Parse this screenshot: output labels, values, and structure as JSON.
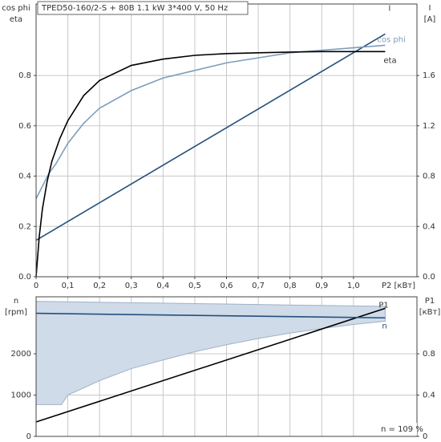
{
  "chart_data": [
    {
      "type": "line",
      "title": "TPED50-160/2-S + 80B  1.1 kW  3*400 V, 50 Hz",
      "ylabel_lines": [
        "cos phi",
        "eta"
      ],
      "y2label_lines": [
        "I",
        "[A]"
      ],
      "xlabel": "P2 [кВт]",
      "xlim": [
        0,
        1.2
      ],
      "xticks": [
        0,
        {
          "value": 0.1,
          "label": "0,1"
        },
        {
          "value": 0.2,
          "label": "0,2"
        },
        {
          "value": 0.3,
          "label": "0,3"
        },
        {
          "value": 0.4,
          "label": "0,4"
        },
        {
          "value": 0.5,
          "label": "0,5"
        },
        {
          "value": 0.6,
          "label": "0,6"
        },
        {
          "value": 0.7,
          "label": "0,7"
        },
        {
          "value": 0.8,
          "label": "0,8"
        },
        {
          "value": 0.9,
          "label": "0,9"
        },
        {
          "value": 1.0,
          "label": "1,0"
        }
      ],
      "ylim": [
        0,
        1.084
      ],
      "yticks": [
        {
          "value": 0,
          "label": "0.0"
        },
        0.2,
        0.4,
        0.6,
        0.8
      ],
      "y2lim": [
        0,
        2.168
      ],
      "y2ticks": [
        {
          "value": 0,
          "label": "0.0"
        },
        0.4,
        0.8,
        1.2,
        1.6
      ],
      "grid": true,
      "series": [
        {
          "name": "I",
          "color": "#24507c",
          "axis": "y2",
          "x": [
            0,
            1.1
          ],
          "values": [
            0.29,
            1.93
          ]
        },
        {
          "name": "cos phi",
          "color": "#7d9dbd",
          "x": [
            0,
            0.02,
            0.04,
            0.063,
            0.1,
            0.15,
            0.2,
            0.3,
            0.4,
            0.5,
            0.6,
            0.7,
            0.8,
            0.9,
            1.0,
            1.1
          ],
          "values": [
            0.31,
            0.36,
            0.41,
            0.45,
            0.53,
            0.61,
            0.67,
            0.74,
            0.79,
            0.82,
            0.85,
            0.87,
            0.89,
            0.9,
            0.91,
            0.92
          ]
        },
        {
          "name": "eta",
          "color": "#000000",
          "x": [
            0,
            0.01,
            0.02,
            0.035,
            0.05,
            0.075,
            0.1,
            0.15,
            0.2,
            0.3,
            0.4,
            0.5,
            0.6,
            0.7,
            0.8,
            0.9,
            1.0,
            1.1
          ],
          "values": [
            0,
            0.16,
            0.27,
            0.38,
            0.46,
            0.55,
            0.62,
            0.72,
            0.78,
            0.84,
            0.865,
            0.88,
            0.887,
            0.89,
            0.893,
            0.895,
            0.895,
            0.895
          ]
        }
      ]
    },
    {
      "type": "line",
      "ylabel_lines": [
        "n",
        "[rpm]"
      ],
      "y2label_lines": [
        "P1",
        "[кВт]"
      ],
      "note": "n = 109 %",
      "xlim": [
        0,
        1.2
      ],
      "ylim": [
        0,
        3380
      ],
      "yticks": [
        0,
        1000,
        2000
      ],
      "y2lim": [
        0,
        1.352
      ],
      "y2ticks": [
        0,
        0.4,
        0.8
      ],
      "grid": true,
      "band": {
        "color": "#cfdbe8",
        "x": [
          0,
          0.08,
          0.1,
          0.2,
          0.3,
          0.4,
          0.5,
          0.6,
          0.7,
          0.8,
          0.9,
          1.0,
          1.1
        ],
        "upper": [
          3270,
          3261,
          3259,
          3248,
          3237,
          3226,
          3215,
          3204,
          3193,
          3182,
          3171,
          3160,
          3150
        ],
        "lower": [
          770,
          770,
          1000,
          1350,
          1640,
          1850,
          2050,
          2220,
          2370,
          2500,
          2610,
          2710,
          2790
        ]
      },
      "series": [
        {
          "name": "P1",
          "color": "#000000",
          "axis": "y2",
          "x": [
            0,
            1.1
          ],
          "values": [
            0.14,
            1.24
          ]
        },
        {
          "name": "n",
          "color": "#24507c",
          "x": [
            0,
            1.1
          ],
          "values": [
            2980,
            2870
          ]
        }
      ]
    }
  ]
}
